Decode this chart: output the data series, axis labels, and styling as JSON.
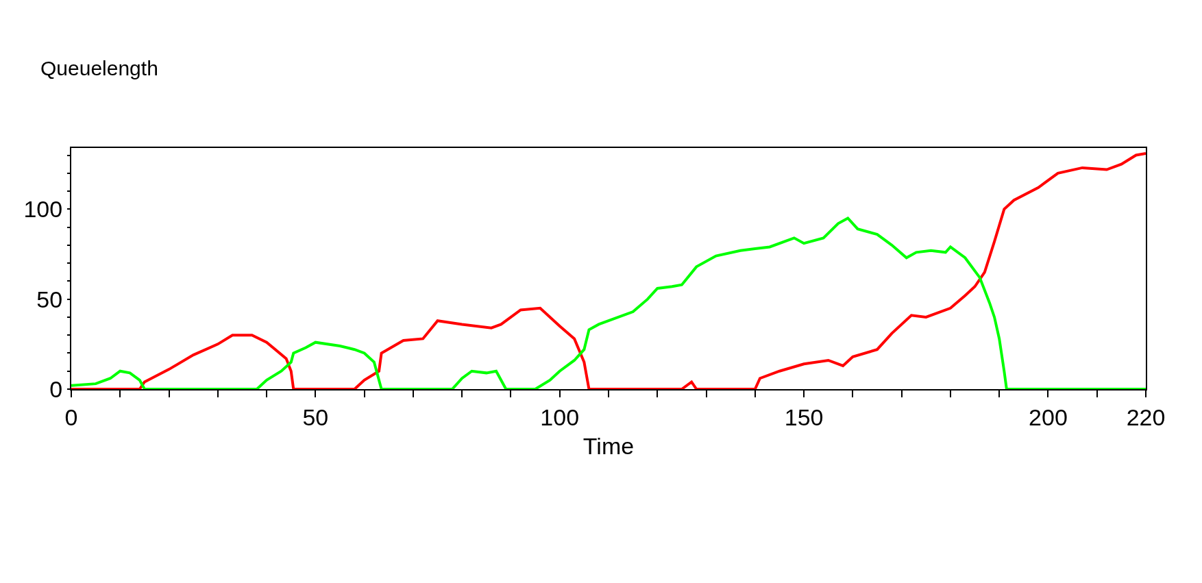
{
  "chart_data": {
    "type": "line",
    "xlabel": "Time",
    "annotations": [
      "Queuelength"
    ],
    "xlim": [
      0,
      220
    ],
    "ylim": [
      0,
      134
    ],
    "xticks": [
      0,
      {
        "value": 10,
        "label": null
      },
      {
        "value": 20,
        "label": null
      },
      {
        "value": 30,
        "label": null
      },
      {
        "value": 40,
        "label": null
      },
      50,
      {
        "value": 60,
        "label": null
      },
      {
        "value": 70,
        "label": null
      },
      {
        "value": 80,
        "label": null
      },
      {
        "value": 90,
        "label": null
      },
      100,
      {
        "value": 110,
        "label": null
      },
      {
        "value": 120,
        "label": null
      },
      {
        "value": 130,
        "label": null
      },
      {
        "value": 140,
        "label": null
      },
      150,
      {
        "value": 160,
        "label": null
      },
      {
        "value": 170,
        "label": null
      },
      {
        "value": 180,
        "label": null
      },
      {
        "value": 190,
        "label": null
      },
      200,
      {
        "value": 210,
        "label": null
      },
      220
    ],
    "yticks": [
      0,
      {
        "value": 10,
        "label": null
      },
      {
        "value": 20,
        "label": null
      },
      {
        "value": 30,
        "label": null
      },
      {
        "value": 40,
        "label": null
      },
      50,
      {
        "value": 60,
        "label": null
      },
      {
        "value": 70,
        "label": null
      },
      {
        "value": 80,
        "label": null
      },
      {
        "value": 90,
        "label": null
      },
      100,
      {
        "value": 110,
        "label": null
      },
      {
        "value": 120,
        "label": null
      },
      {
        "value": 130,
        "label": null
      }
    ],
    "grid": false,
    "marker": "none",
    "line_style": "solid",
    "series": [
      {
        "color": "#ff0000",
        "x": [
          0,
          14,
          15,
          20,
          25,
          30,
          33,
          37,
          40,
          44,
          45,
          45.5,
          58,
          60,
          63,
          63.5,
          68,
          72,
          75,
          80,
          86,
          88,
          92,
          96,
          100,
          103,
          105,
          106,
          125,
          127,
          128,
          140,
          141,
          145,
          150,
          155,
          158,
          160,
          165,
          168,
          172,
          175,
          180,
          183,
          185,
          187,
          189,
          191,
          193,
          198,
          202,
          207,
          212,
          215,
          218,
          220
        ],
        "values": [
          0,
          0,
          4,
          11,
          19,
          25,
          30,
          30,
          26,
          17,
          10,
          0,
          0,
          5,
          10,
          20,
          27,
          28,
          38,
          36,
          34,
          36,
          44,
          45,
          35,
          28,
          15,
          0,
          0,
          4,
          0,
          0,
          6,
          10,
          14,
          16,
          13,
          18,
          22,
          31,
          41,
          40,
          45,
          52,
          57,
          65,
          82,
          100,
          105,
          112,
          120,
          123,
          122,
          125,
          130,
          131
        ]
      },
      {
        "color": "#00ff00",
        "x": [
          0,
          5,
          8,
          10,
          12,
          14,
          15,
          38,
          40,
          43,
          45,
          45.5,
          48,
          50,
          55,
          58,
          60,
          62,
          63.5,
          78,
          80,
          82,
          85,
          87,
          89,
          95,
          98,
          100,
          103,
          105,
          106,
          108,
          110,
          115,
          118,
          120,
          123,
          125,
          128,
          132,
          137,
          140,
          143,
          148,
          150,
          154,
          157,
          159,
          161,
          165,
          168,
          171,
          173,
          176,
          179,
          180,
          183,
          186,
          188,
          189,
          190,
          191,
          191.5,
          220
        ],
        "values": [
          2,
          3,
          6,
          10,
          9,
          5,
          0,
          0,
          5,
          10,
          15,
          20,
          23,
          26,
          24,
          22,
          20,
          15,
          0,
          0,
          6,
          10,
          9,
          10,
          0,
          0,
          5,
          10,
          16,
          22,
          33,
          36,
          38,
          43,
          50,
          56,
          57,
          58,
          68,
          74,
          77,
          78,
          79,
          84,
          81,
          84,
          92,
          95,
          89,
          86,
          80,
          73,
          76,
          77,
          76,
          79,
          73,
          62,
          48,
          40,
          28,
          10,
          0,
          0
        ]
      }
    ]
  }
}
